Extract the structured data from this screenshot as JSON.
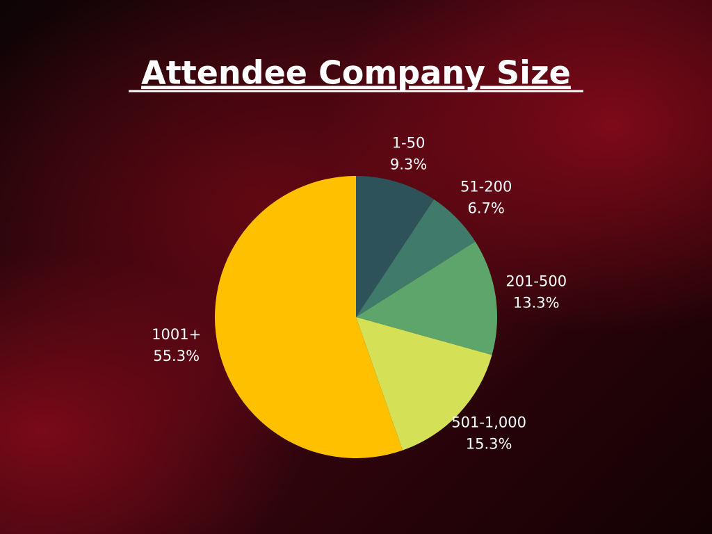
{
  "chart_data": {
    "type": "pie",
    "title": "Attendee Company Size",
    "categories": [
      "1-50",
      "51-200",
      "201-500",
      "501-1,000",
      "1001+"
    ],
    "values": [
      9.3,
      6.7,
      13.3,
      15.3,
      55.3
    ],
    "value_labels": [
      "9.3%",
      "6.7%",
      "13.3%",
      "15.3%",
      "55.3%"
    ],
    "colors": [
      "#2d5259",
      "#3f7a6a",
      "#5ea56b",
      "#d4e157",
      "#ffc000"
    ]
  }
}
